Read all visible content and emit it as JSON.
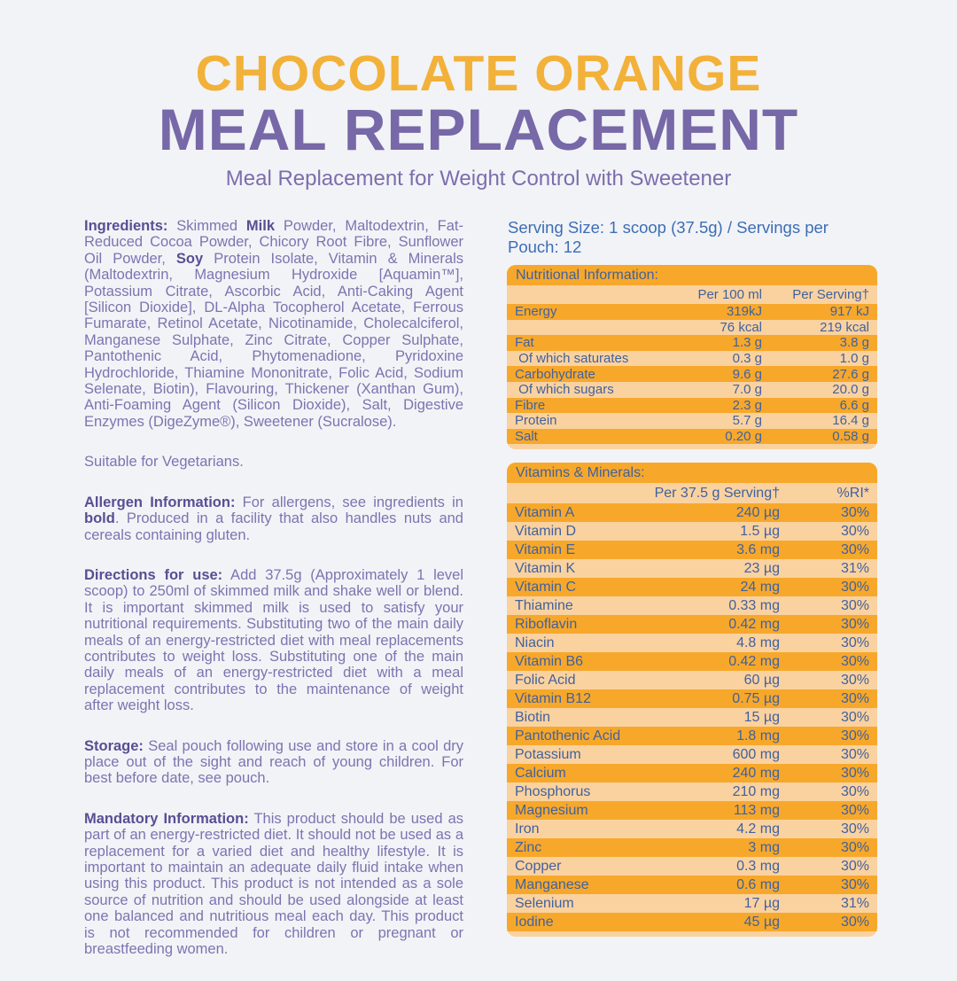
{
  "header": {
    "title_line1": "CHOCOLATE ORANGE",
    "title_line2": "MEAL REPLACEMENT",
    "subtitle": "Meal Replacement for Weight Control with Sweetener",
    "accent_orange": "#F2B139",
    "accent_purple": "#7768A7"
  },
  "left": {
    "ingredients": {
      "label": "Ingredients:",
      "seg1": " Skimmed ",
      "bold1": "Milk",
      "seg2": " Powder, Maltodextrin, Fat-Reduced Cocoa Powder, Chicory Root Fibre, Sunflower Oil Powder, ",
      "bold2": "Soy",
      "seg3": " Protein Isolate, Vitamin & Minerals (Maltodextrin, Magnesium Hydroxide [Aquamin™], Potassium Citrate, Ascorbic Acid, Anti-Caking Agent [Silicon Dioxide], DL-Alpha Tocopherol Acetate, Ferrous Fumarate, Retinol Acetate, Nicotinamide, Cholecalciferol, Manganese Sulphate, Zinc Citrate, Copper Sulphate, Pantothenic Acid, Phytomenadione, Pyridoxine Hydrochloride, Thiamine Mononitrate, Folic Acid, Sodium Selenate, Biotin), Flavouring, Thickener (Xanthan Gum), Anti-Foaming Agent (Silicon Dioxide), Salt, Digestive Enzymes (DigeZyme®), Sweetener (Sucralose).",
      "note": "Suitable for Vegetarians."
    },
    "allergen": {
      "label": "Allergen Information:",
      "seg1": " For allergens, see ingredients in ",
      "bold1": "bold",
      "seg2": ". Produced in a facility that also handles nuts and cereals containing gluten."
    },
    "directions": {
      "label": "Directions for use:",
      "text": " Add 37.5g (Approximately 1 level scoop) to 250ml of skimmed milk and shake well or blend. It is important skimmed milk is used to satisfy your nutritional requirements. Substituting two of the main daily meals of an energy-restricted diet with meal replacements contributes to weight loss. Substituting one of the main daily meals of an energy-restricted diet with a meal replacement contributes to the maintenance of weight after weight loss."
    },
    "storage": {
      "label": "Storage:",
      "text": " Seal pouch following use and store in a cool dry place out of the sight and reach of young children. For best before date, see pouch."
    },
    "mandatory": {
      "label": "Mandatory Information:",
      "text": " This product should be used as part of an energy-restricted diet. It should not be used as a replacement for a varied diet and healthy lifestyle. It is important to maintain an adequate daily fluid intake when using this product. This product is not intended as a sole source of nutrition and should be used alongside at least one balanced and nutritious meal each day. This product is not recommended for children or pregnant or breastfeeding women."
    }
  },
  "right": {
    "serving_line": "Serving Size: 1 scoop (37.5g) / Servings per Pouch: 12",
    "table_colors": {
      "stripe_dark": "#F7A82B",
      "stripe_light": "#FAD2A0",
      "text": "#41619E"
    },
    "nutrition_table": {
      "title": "Nutritional Information:",
      "col2": "Per 100 ml",
      "col3": "Per Serving†",
      "rows": [
        {
          "label": "Energy",
          "v1": "319kJ",
          "v2": "917 kJ"
        },
        {
          "label": "",
          "v1": "76 kcal",
          "v2": "219 kcal"
        },
        {
          "label": "Fat",
          "v1": "1.3 g",
          "v2": "3.8 g"
        },
        {
          "label": " Of which saturates",
          "v1": "0.3 g",
          "v2": "1.0 g"
        },
        {
          "label": "Carbohydrate",
          "v1": "9.6 g",
          "v2": "27.6 g"
        },
        {
          "label": " Of which sugars",
          "v1": "7.0 g",
          "v2": "20.0 g"
        },
        {
          "label": "Fibre",
          "v1": "2.3 g",
          "v2": "6.6 g"
        },
        {
          "label": "Protein",
          "v1": "5.7 g",
          "v2": "16.4 g"
        },
        {
          "label": "Salt",
          "v1": "0.20 g",
          "v2": "0.58 g"
        }
      ]
    },
    "vitamins_table": {
      "title": "Vitamins & Minerals:",
      "col2": "Per 37.5 g Serving†",
      "col3": "%RI*",
      "rows": [
        {
          "label": "Vitamin A",
          "v1": "240 µg",
          "v2": "30%"
        },
        {
          "label": "Vitamin D",
          "v1": "1.5 µg",
          "v2": "30%"
        },
        {
          "label": "Vitamin E",
          "v1": "3.6 mg",
          "v2": "30%"
        },
        {
          "label": "Vitamin K",
          "v1": "23 µg",
          "v2": "31%"
        },
        {
          "label": "Vitamin C",
          "v1": "24 mg",
          "v2": "30%"
        },
        {
          "label": "Thiamine",
          "v1": "0.33 mg",
          "v2": "30%"
        },
        {
          "label": "Riboflavin",
          "v1": "0.42 mg",
          "v2": "30%"
        },
        {
          "label": "Niacin",
          "v1": "4.8 mg",
          "v2": "30%"
        },
        {
          "label": "Vitamin B6",
          "v1": "0.42 mg",
          "v2": "30%"
        },
        {
          "label": "Folic Acid",
          "v1": "60 µg",
          "v2": "30%"
        },
        {
          "label": "Vitamin B12",
          "v1": "0.75 µg",
          "v2": "30%"
        },
        {
          "label": "Biotin",
          "v1": "15 µg",
          "v2": "30%"
        },
        {
          "label": "Pantothenic Acid",
          "v1": "1.8 mg",
          "v2": "30%"
        },
        {
          "label": "Potassium",
          "v1": "600 mg",
          "v2": "30%"
        },
        {
          "label": "Calcium",
          "v1": "240 mg",
          "v2": "30%"
        },
        {
          "label": "Phosphorus",
          "v1": "210 mg",
          "v2": "30%"
        },
        {
          "label": "Magnesium",
          "v1": "113 mg",
          "v2": "30%"
        },
        {
          "label": "Iron",
          "v1": "4.2 mg",
          "v2": "30%"
        },
        {
          "label": "Zinc",
          "v1": "3 mg",
          "v2": "30%"
        },
        {
          "label": "Copper",
          "v1": "0.3 mg",
          "v2": "30%"
        },
        {
          "label": "Manganese",
          "v1": "0.6 mg",
          "v2": "30%"
        },
        {
          "label": "Selenium",
          "v1": "17 µg",
          "v2": "31%"
        },
        {
          "label": "Iodine",
          "v1": "45 µg",
          "v2": "30%"
        }
      ]
    }
  }
}
